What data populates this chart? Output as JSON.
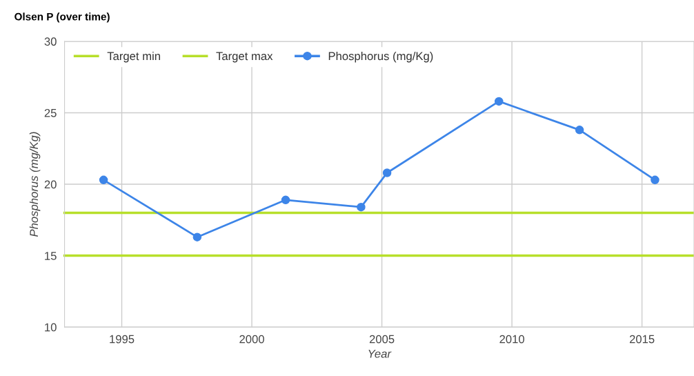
{
  "chart_data": {
    "type": "line",
    "title": "Olsen P (over time)",
    "xlabel": "Year",
    "ylabel": "Phosphorus (mg/Kg)",
    "xlim": [
      1992.8,
      2017
    ],
    "xticks": [
      1995,
      2000,
      2005,
      2010,
      2015
    ],
    "ylim": [
      10,
      30
    ],
    "yticks": [
      10,
      15,
      20,
      25,
      30
    ],
    "grid": true,
    "legend": "top left",
    "series": [
      {
        "name": "Target min",
        "color": "#b7df2a",
        "marker": "none",
        "x": [
          1992.8,
          2017
        ],
        "values": [
          18,
          18
        ]
      },
      {
        "name": "Target max",
        "color": "#b7df2a",
        "marker": "none",
        "x": [
          1992.8,
          2017
        ],
        "values": [
          15,
          15
        ]
      },
      {
        "name": "Phosphorus (mg/Kg)",
        "color": "#3d85e8",
        "marker": "circle",
        "x": [
          1994.3,
          1997.9,
          2001.3,
          2004.2,
          2005.2,
          2009.5,
          2012.6,
          2015.5
        ],
        "values": [
          20.3,
          16.3,
          18.9,
          18.4,
          20.8,
          25.8,
          23.8,
          20.3
        ]
      }
    ]
  }
}
